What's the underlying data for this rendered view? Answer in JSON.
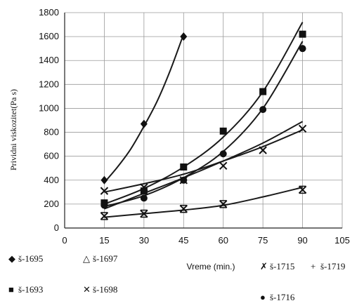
{
  "chart_data": {
    "type": "scatter",
    "xlabel": "Vreme (min.)",
    "ylabel": "Prividni viskozitet(Pa s)",
    "xlim": [
      0,
      105
    ],
    "ylim": [
      0,
      1800
    ],
    "xticks": [
      0,
      15,
      30,
      45,
      60,
      75,
      90,
      105
    ],
    "yticks": [
      0,
      200,
      400,
      600,
      800,
      1000,
      1200,
      1400,
      1600,
      1800
    ],
    "grid": true,
    "legend_position": "bottom",
    "series": [
      {
        "name": "š-1695",
        "marker": "diamond",
        "x": [
          15,
          30,
          45
        ],
        "y": [
          400,
          870,
          1600
        ],
        "fit": [
          [
            15,
            380
          ],
          [
            20,
            510
          ],
          [
            25,
            660
          ],
          [
            30,
            850
          ],
          [
            35,
            1060
          ],
          [
            40,
            1320
          ],
          [
            45,
            1620
          ]
        ]
      },
      {
        "name": "š-1697",
        "marker": "triangle",
        "x": [],
        "y": [],
        "fit": []
      },
      {
        "name": "š-1715",
        "marker": "hourglass",
        "x": [
          15,
          30,
          45,
          60,
          90
        ],
        "y": [
          100,
          120,
          160,
          200,
          320
        ],
        "fit": [
          [
            15,
            90
          ],
          [
            30,
            120
          ],
          [
            45,
            150
          ],
          [
            60,
            190
          ],
          [
            75,
            260
          ],
          [
            90,
            340
          ]
        ]
      },
      {
        "name": "š-1719",
        "marker": "plus",
        "x": [],
        "y": [],
        "fit": []
      },
      {
        "name": "š-1693",
        "marker": "square",
        "x": [
          15,
          30,
          45,
          60,
          75,
          90
        ],
        "y": [
          210,
          310,
          510,
          810,
          1140,
          1620
        ],
        "fit": [
          [
            15,
            200
          ],
          [
            30,
            330
          ],
          [
            45,
            510
          ],
          [
            60,
            760
          ],
          [
            75,
            1140
          ],
          [
            90,
            1720
          ]
        ]
      },
      {
        "name": "š-1698",
        "marker": "x",
        "x": [
          15,
          30,
          45,
          60,
          75,
          90
        ],
        "y": [
          310,
          340,
          400,
          520,
          650,
          830
        ],
        "fit": [
          [
            15,
            300
          ],
          [
            30,
            370
          ],
          [
            45,
            450
          ],
          [
            60,
            560
          ],
          [
            75,
            680
          ],
          [
            90,
            820
          ]
        ]
      },
      {
        "name": "š-1716",
        "marker": "circle",
        "x": [
          15,
          30,
          45,
          60,
          75,
          90
        ],
        "y": [
          190,
          250,
          400,
          620,
          990,
          1500
        ],
        "fit": [
          [
            15,
            160
          ],
          [
            30,
            290
          ],
          [
            45,
            420
          ],
          [
            60,
            560
          ],
          [
            75,
            710
          ],
          [
            90,
            890
          ]
        ]
      },
      {
        "name": "",
        "marker": "none",
        "x": [],
        "y": [],
        "fit": [
          [
            15,
            180
          ],
          [
            30,
            270
          ],
          [
            45,
            420
          ],
          [
            60,
            640
          ],
          [
            75,
            1000
          ],
          [
            90,
            1560
          ]
        ]
      }
    ],
    "legend": [
      {
        "label": "š-1695",
        "symbol": "◆"
      },
      {
        "label": "š-1697",
        "symbol": "△"
      },
      {
        "label": "š-1715",
        "symbol": "✗"
      },
      {
        "label": "š-1719",
        "symbol": "+"
      },
      {
        "label": "š-1693",
        "symbol": "■"
      },
      {
        "label": "š-1698",
        "symbol": "✕"
      },
      {
        "label": "š-1716",
        "symbol": "●"
      }
    ]
  }
}
